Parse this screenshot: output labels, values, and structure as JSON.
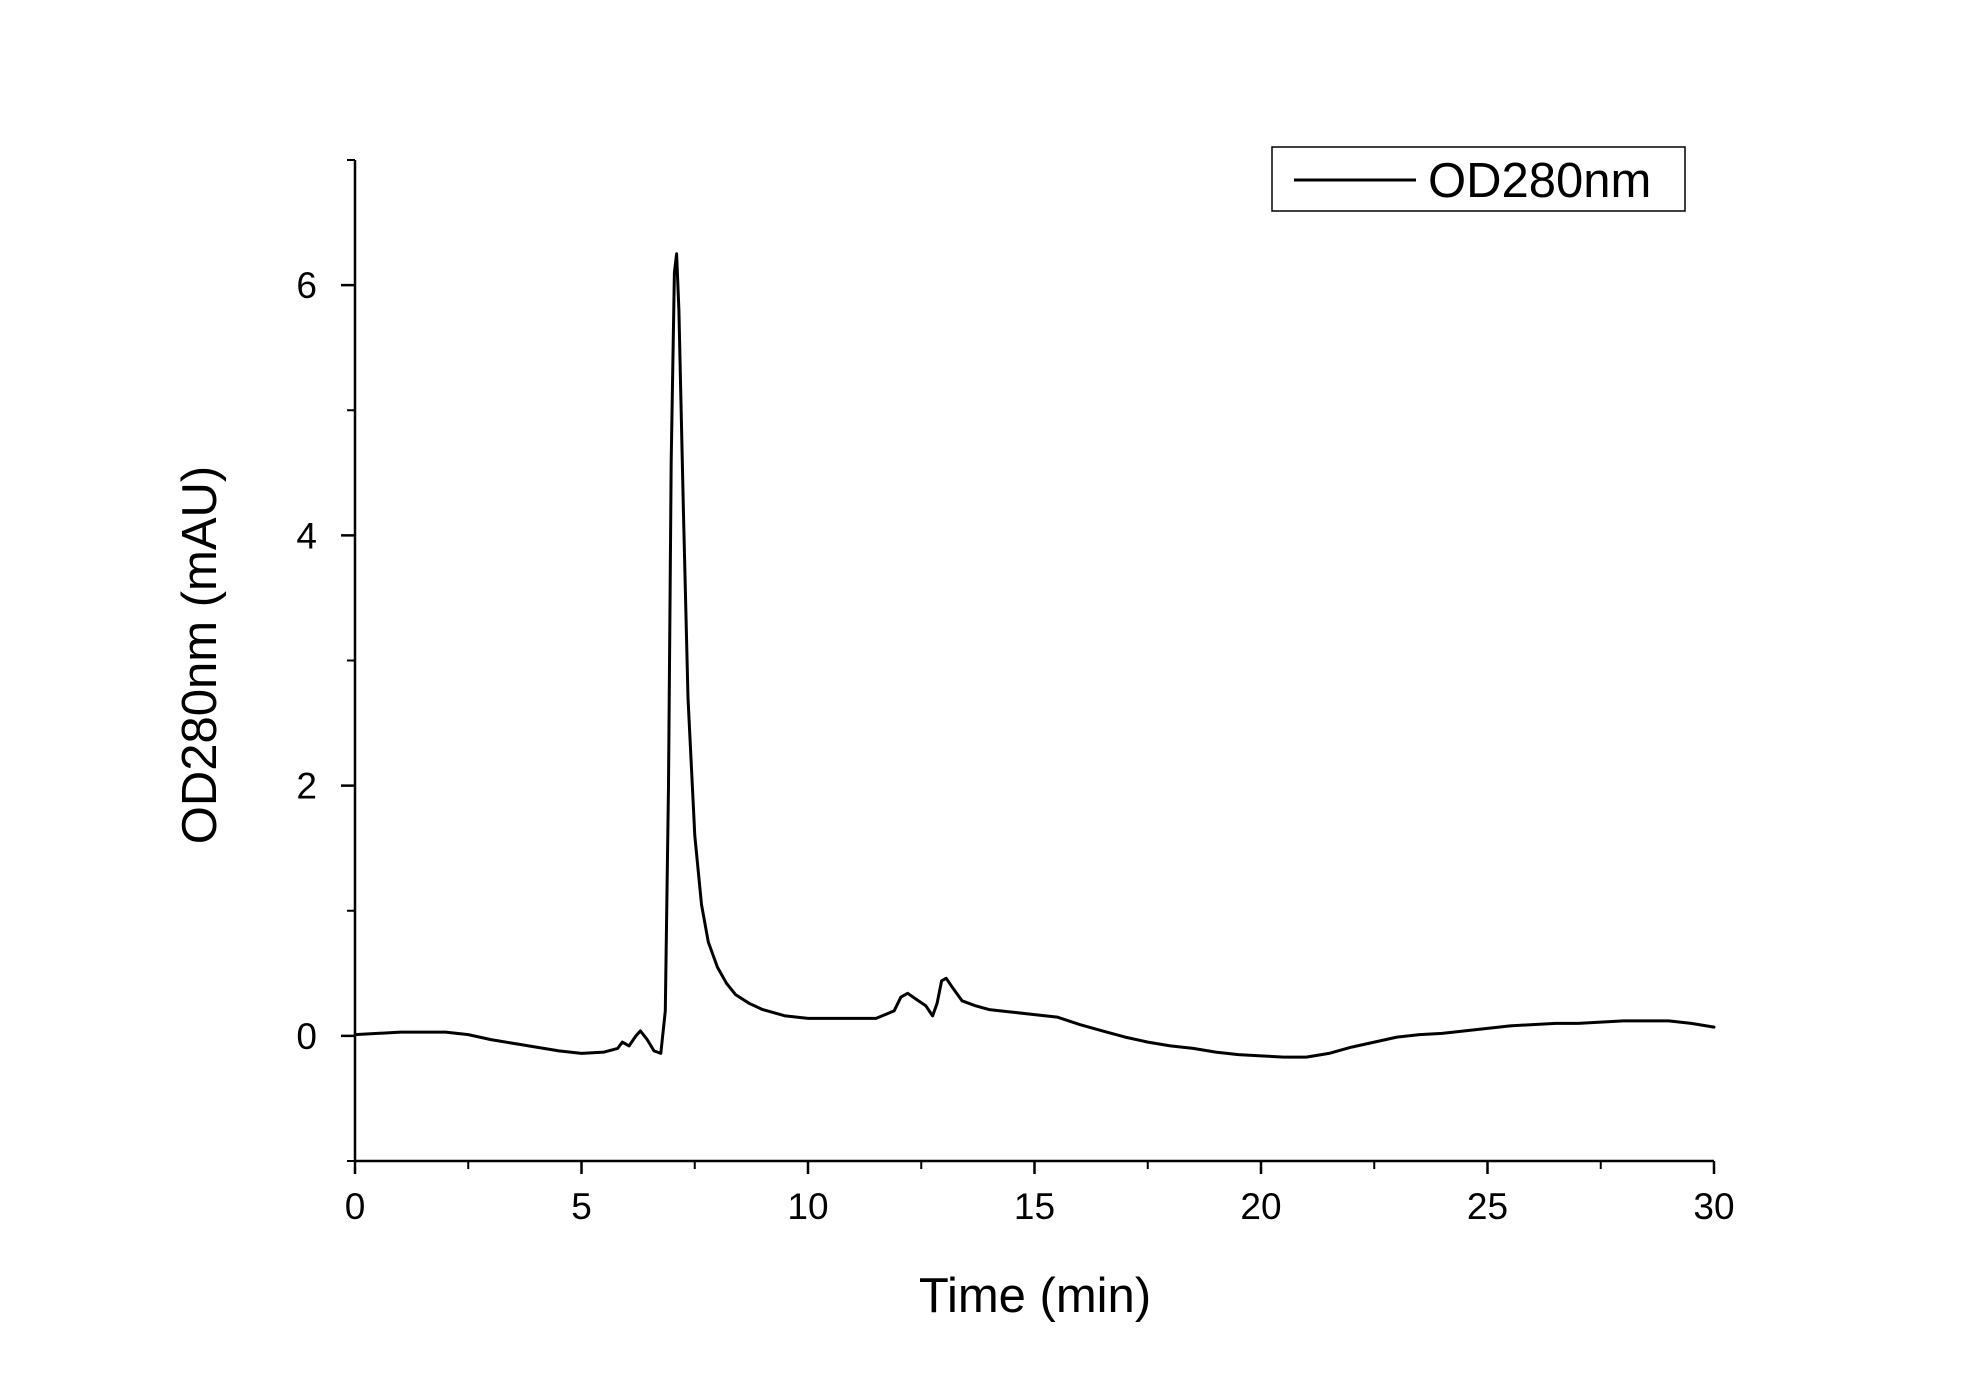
{
  "chart_data": {
    "type": "line",
    "xlabel": "Time (min)",
    "ylabel": "OD280nm (mAU)",
    "xlim": [
      0,
      30
    ],
    "ylim": [
      -1,
      7
    ],
    "x_ticks": [
      0,
      5,
      10,
      15,
      20,
      25,
      30
    ],
    "x_tick_labels": [
      "0",
      "5",
      "10",
      "15",
      "20",
      "25",
      "30"
    ],
    "x_minor_ticks": [
      2.5,
      7.5,
      12.5,
      17.5,
      22.5,
      27.5
    ],
    "y_ticks": [
      0,
      2,
      4,
      6
    ],
    "y_tick_labels": [
      "0",
      "2",
      "4",
      "6"
    ],
    "y_minor_ticks": [
      -1,
      1,
      3,
      5,
      7
    ],
    "grid": false,
    "legend_position": "top-right",
    "series": [
      {
        "name": "OD280nm",
        "color": "#000000",
        "x": [
          0,
          0.5,
          1,
          1.5,
          2,
          2.5,
          3,
          3.5,
          4,
          4.5,
          5,
          5.5,
          5.8,
          5.9,
          6.05,
          6.2,
          6.3,
          6.45,
          6.6,
          6.75,
          6.85,
          6.92,
          6.98,
          7.05,
          7.1,
          7.15,
          7.25,
          7.35,
          7.5,
          7.65,
          7.8,
          8.0,
          8.2,
          8.4,
          8.7,
          9.0,
          9.5,
          10,
          10.5,
          11,
          11.5,
          11.9,
          12.05,
          12.2,
          12.4,
          12.6,
          12.75,
          12.85,
          12.95,
          13.05,
          13.2,
          13.4,
          13.7,
          14,
          14.5,
          15,
          15.5,
          16,
          16.5,
          17,
          17.5,
          18,
          18.5,
          19,
          19.5,
          20,
          20.5,
          21,
          21.5,
          22,
          22.5,
          23,
          23.5,
          24,
          24.5,
          25,
          25.5,
          26,
          26.5,
          27,
          27.5,
          28,
          28.5,
          29,
          29.5,
          30
        ],
        "y": [
          0.01,
          0.02,
          0.03,
          0.03,
          0.03,
          0.01,
          -0.03,
          -0.06,
          -0.09,
          -0.12,
          -0.14,
          -0.13,
          -0.1,
          -0.05,
          -0.08,
          0.0,
          0.04,
          -0.03,
          -0.12,
          -0.14,
          0.2,
          2.0,
          4.6,
          6.1,
          6.25,
          5.8,
          4.2,
          2.7,
          1.6,
          1.05,
          0.75,
          0.55,
          0.42,
          0.33,
          0.26,
          0.21,
          0.16,
          0.14,
          0.14,
          0.14,
          0.14,
          0.2,
          0.31,
          0.34,
          0.29,
          0.24,
          0.16,
          0.26,
          0.44,
          0.46,
          0.38,
          0.28,
          0.24,
          0.21,
          0.19,
          0.17,
          0.15,
          0.09,
          0.04,
          -0.01,
          -0.05,
          -0.08,
          -0.1,
          -0.13,
          -0.15,
          -0.16,
          -0.17,
          -0.17,
          -0.14,
          -0.09,
          -0.05,
          -0.01,
          0.01,
          0.02,
          0.04,
          0.06,
          0.08,
          0.09,
          0.1,
          0.1,
          0.11,
          0.12,
          0.12,
          0.12,
          0.1,
          0.07
        ]
      }
    ]
  }
}
